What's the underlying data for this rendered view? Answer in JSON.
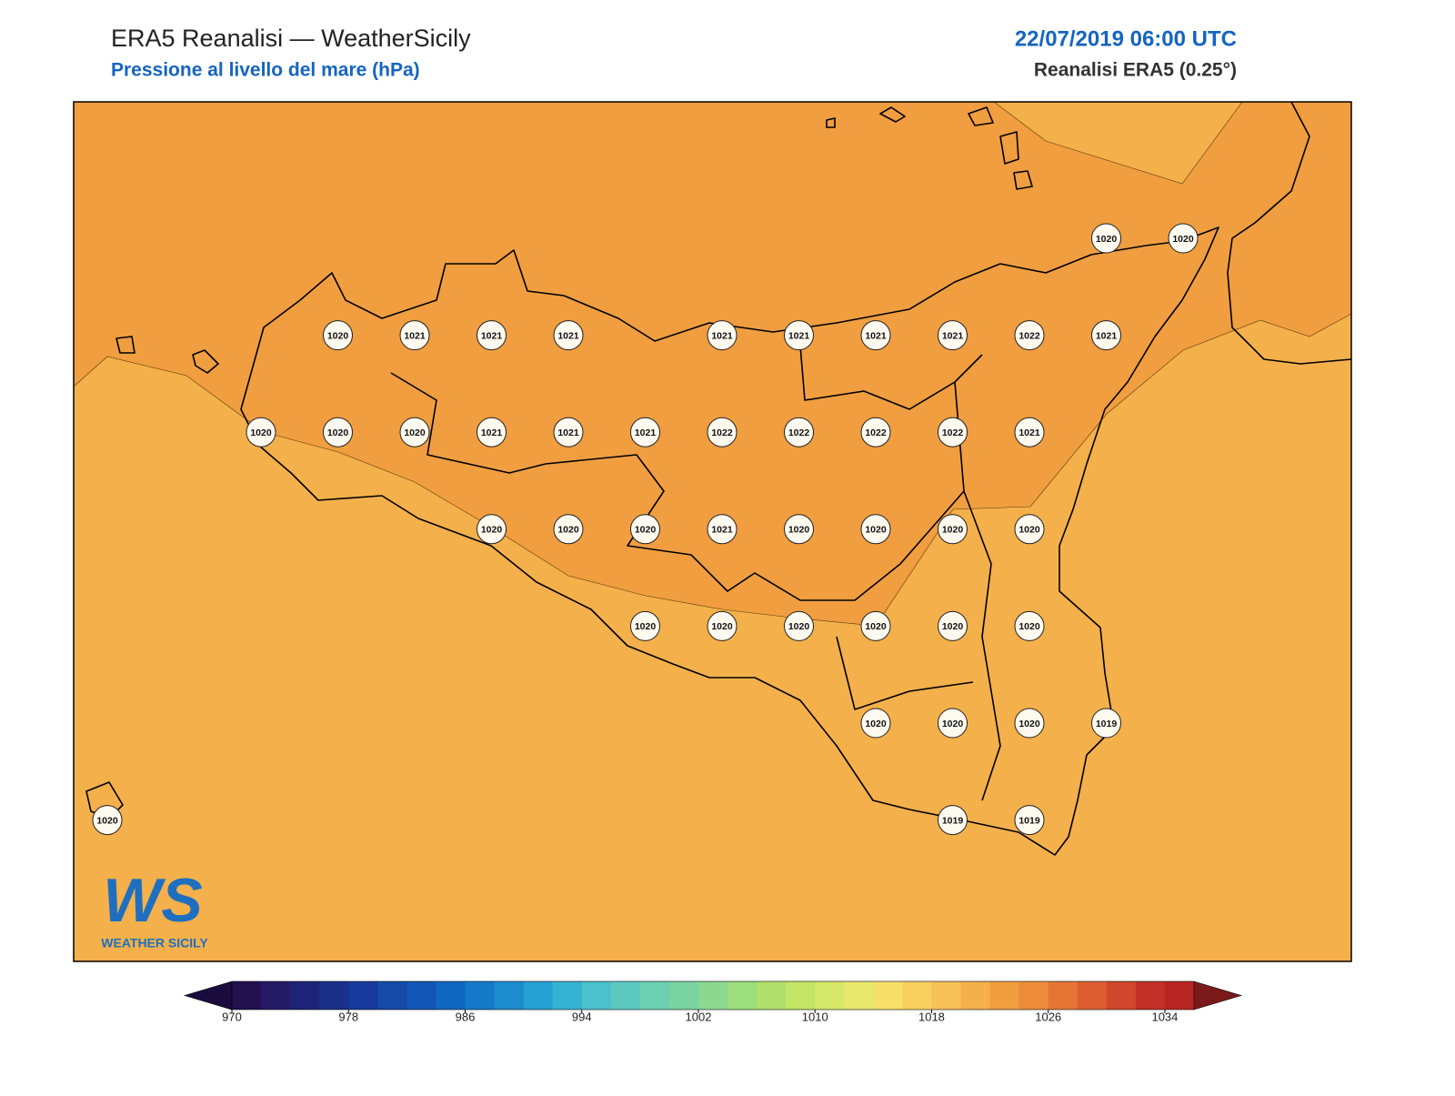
{
  "header": {
    "title": "ERA5 Reanalisi — WeatherSicily",
    "subtitle": "Pressione al livello del mare (hPa)",
    "datetime": "22/07/2019 06:00 UTC",
    "source": "Reanalisi ERA5 (0.25°)"
  },
  "stations": {
    "rows": [
      [
        null,
        null,
        null,
        null,
        null,
        null,
        null,
        null,
        null,
        null,
        null,
        null,
        null,
        1020,
        1020
      ],
      [
        null,
        null,
        null,
        1020,
        1021,
        1021,
        1021,
        null,
        1021,
        1021,
        1021,
        1021,
        1022,
        1021,
        null
      ],
      [
        null,
        null,
        1020,
        1020,
        1020,
        1021,
        1021,
        1021,
        1022,
        1022,
        1022,
        1022,
        1021,
        null,
        null
      ],
      [
        null,
        null,
        null,
        null,
        null,
        1020,
        1020,
        1020,
        1021,
        1020,
        1020,
        1020,
        1020,
        null,
        null
      ],
      [
        null,
        null,
        null,
        null,
        null,
        null,
        null,
        1020,
        1020,
        1020,
        1020,
        1020,
        1020,
        null,
        null
      ],
      [
        null,
        null,
        null,
        null,
        null,
        null,
        null,
        null,
        null,
        null,
        1020,
        1020,
        1020,
        1019,
        null
      ],
      [
        1020,
        null,
        null,
        null,
        null,
        null,
        null,
        null,
        null,
        null,
        null,
        1019,
        1019,
        null,
        null
      ]
    ]
  },
  "colorbar": {
    "lim": [
      970,
      1036
    ],
    "ticks": [
      970,
      978,
      986,
      994,
      1002,
      1010,
      1018,
      1026,
      1034
    ],
    "colors": [
      "#23104f",
      "#241a66",
      "#1d2478",
      "#1a2f8a",
      "#17399b",
      "#154aa8",
      "#1257b5",
      "#0f68c0",
      "#1479c8",
      "#1c8ccf",
      "#27a0d3",
      "#35b3d2",
      "#4ac1cc",
      "#5cc9c1",
      "#6ccfb2",
      "#7ad4a2",
      "#8ad98f",
      "#9cdd7c",
      "#b0e06b",
      "#c4e465",
      "#d6e86a",
      "#e8e86e",
      "#f6e06a",
      "#f9d060",
      "#f7c257",
      "#f4b04a",
      "#f09e40",
      "#ec8c3a",
      "#e67535",
      "#dc5e30",
      "#d0472c",
      "#c23028",
      "#b82525"
    ],
    "under_color": "#1a0c3f",
    "over_color": "#7a1a1a"
  },
  "logo": {
    "mark": "WS",
    "text": "WEATHER SICILY"
  }
}
